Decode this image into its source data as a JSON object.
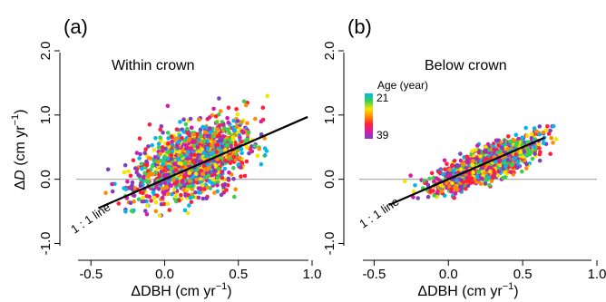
{
  "colors": {
    "axis": "#000000",
    "zero_line": "#b0b0b0",
    "one_to_one_line": "#000000",
    "age_palette": [
      "#00b7f0",
      "#3ccf4e",
      "#f5e400",
      "#ff8c00",
      "#ff1f3a",
      "#d11ea8",
      "#7f3fbf"
    ]
  },
  "legend": {
    "title": "Age (year)",
    "min_label": "21",
    "max_label": "39",
    "age_min": 21,
    "age_max": 39
  },
  "axes": {
    "xlabel_pre": "ΔDBH (cm yr",
    "xlabel_sup": "−1",
    "xlabel_post": ")",
    "ylabel_pre": "Δ",
    "ylabel_italic": "D",
    "ylabel_mid": " (cm yr",
    "ylabel_sup": "−1",
    "ylabel_post": ")",
    "x_ticks": [
      "-0.5",
      "0.0",
      "0.5",
      "1.0"
    ],
    "y_ticks": [
      "-1.0",
      "0.0",
      "1.0",
      "2.0"
    ],
    "one_to_one_label": "1 : 1 line"
  },
  "chart_data": [
    {
      "type": "scatter",
      "panel_label": "(a)",
      "subtitle": "Within crown",
      "xlim": [
        -0.6,
        1.0
      ],
      "ylim": [
        -1.05,
        2.0
      ],
      "x_ticks": [
        -0.5,
        0.0,
        0.5,
        1.0
      ],
      "y_ticks": [
        -1.0,
        0.0,
        1.0,
        2.0
      ],
      "reference_lines": [
        {
          "type": "horizontal",
          "y": 0.0,
          "color": "gray"
        },
        {
          "type": "one_to_one",
          "x": [
            -0.45,
            0.97
          ],
          "y": [
            -0.45,
            0.97
          ],
          "color": "black"
        }
      ],
      "point_cloud": {
        "x_center": 0.2,
        "x_sd": 0.2,
        "y_center": 0.3,
        "y_sd": 0.3,
        "correlation": 0.5,
        "n_points": 1500,
        "x_range": [
          -0.45,
          0.7
        ],
        "y_range": [
          -0.57,
          1.55
        ],
        "age_range": [
          21,
          39
        ]
      }
    },
    {
      "type": "scatter",
      "panel_label": "(b)",
      "subtitle": "Below crown",
      "xlim": [
        -0.6,
        1.0
      ],
      "ylim": [
        -1.05,
        2.0
      ],
      "x_ticks": [
        -0.5,
        0.0,
        0.5,
        1.0
      ],
      "y_ticks": [
        -1.0,
        0.0,
        1.0,
        2.0
      ],
      "reference_lines": [
        {
          "type": "horizontal",
          "y": 0.0,
          "color": "gray"
        },
        {
          "type": "one_to_one",
          "x": [
            -0.4,
            0.65
          ],
          "y": [
            -0.4,
            0.65
          ],
          "color": "black"
        }
      ],
      "point_cloud": {
        "x_center": 0.25,
        "x_sd": 0.17,
        "y_center": 0.22,
        "y_sd": 0.2,
        "correlation": 0.8,
        "n_points": 1500,
        "x_range": [
          -0.45,
          0.85
        ],
        "y_range": [
          -0.3,
          0.95
        ],
        "age_range": [
          21,
          39
        ]
      }
    }
  ]
}
